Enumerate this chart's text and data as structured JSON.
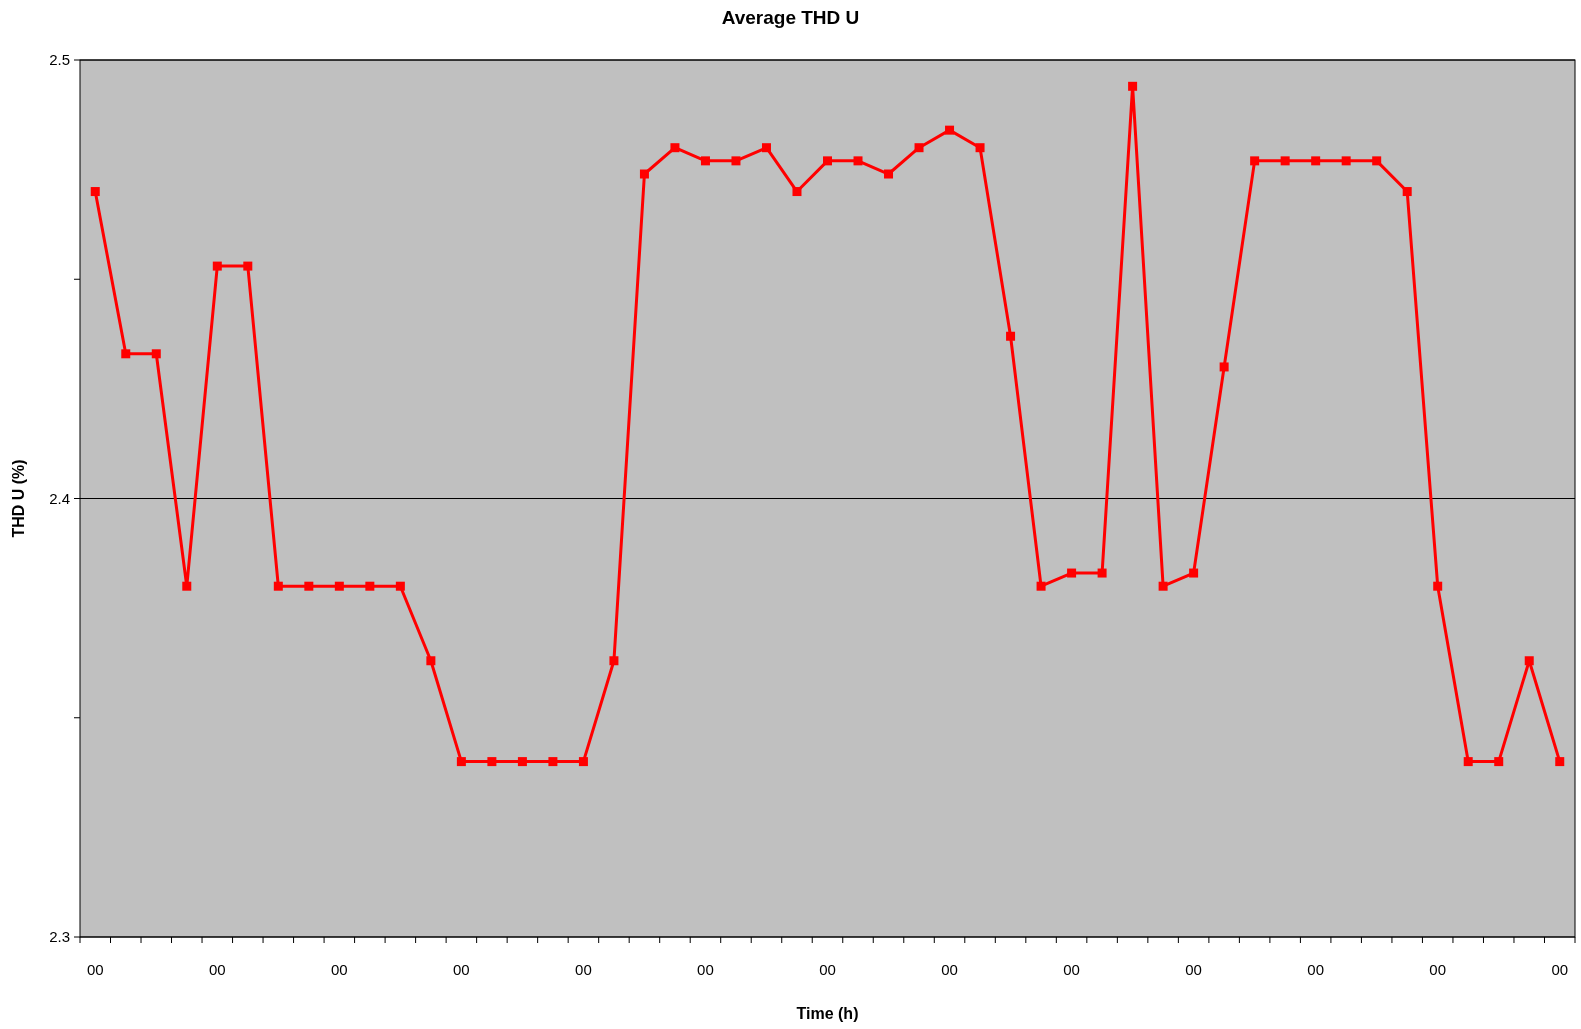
{
  "chart_data": {
    "type": "line",
    "title": "Average THD U",
    "xlabel": "Time (h)",
    "ylabel": "THD U (%)",
    "categories": [
      "00",
      null,
      null,
      null,
      "00",
      null,
      null,
      null,
      "00",
      null,
      null,
      null,
      "00",
      null,
      null,
      null,
      "00",
      null,
      null,
      null,
      "00",
      null,
      null,
      null,
      "00",
      null,
      null,
      null,
      "00",
      null,
      null,
      null,
      "00",
      null,
      null,
      null,
      "00",
      null,
      null,
      null,
      "00",
      null,
      null,
      null,
      "00",
      null,
      null,
      null,
      "00"
    ],
    "series": [
      {
        "color": "#ff0000",
        "values": [
          2.47,
          2.433,
          2.433,
          2.38,
          2.453,
          2.453,
          2.38,
          2.38,
          2.38,
          2.38,
          2.38,
          2.363,
          2.34,
          2.34,
          2.34,
          2.34,
          2.34,
          2.363,
          2.474,
          2.48,
          2.477,
          2.477,
          2.48,
          2.47,
          2.477,
          2.477,
          2.474,
          2.48,
          2.484,
          2.48,
          2.437,
          2.38,
          2.383,
          2.383,
          2.494,
          2.38,
          2.383,
          2.43,
          2.477,
          2.477,
          2.477,
          2.477,
          2.477,
          2.47,
          2.38,
          2.34,
          2.34,
          2.363,
          2.34
        ]
      }
    ],
    "ylim": [
      2.3,
      2.5
    ],
    "yticks": [
      2.3,
      {
        "value": 2.35,
        "label": null
      },
      2.4,
      {
        "value": 2.45,
        "label": null
      },
      2.5
    ],
    "grid": "y",
    "marker": "square",
    "line_style": "solid"
  }
}
